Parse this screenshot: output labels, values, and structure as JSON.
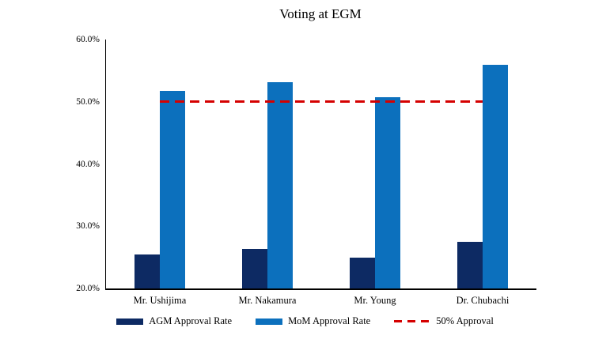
{
  "chart_data": {
    "type": "bar",
    "title": "Voting at EGM",
    "categories": [
      "Mr. Ushijima",
      "Mr. Nakamura",
      "Mr. Young",
      "Dr. Chubachi"
    ],
    "series": [
      {
        "name": "AGM Approval Rate",
        "color": "#0D2A63",
        "values": [
          25.5,
          26.3,
          25.0,
          27.5
        ]
      },
      {
        "name": "MoM Approval Rate",
        "color": "#0C70BD",
        "values": [
          51.7,
          53.1,
          50.7,
          56.0
        ]
      }
    ],
    "reference_line": {
      "label": "50% Approval",
      "value": 50,
      "color": "#D50000",
      "style": "dashed"
    },
    "y_axis": {
      "min": 20,
      "max": 60,
      "step": 10,
      "tick_labels": [
        "20.0%",
        "30.0%",
        "40.0%",
        "50.0%",
        "60.0%"
      ]
    },
    "grid": false,
    "legend_position": "bottom"
  }
}
